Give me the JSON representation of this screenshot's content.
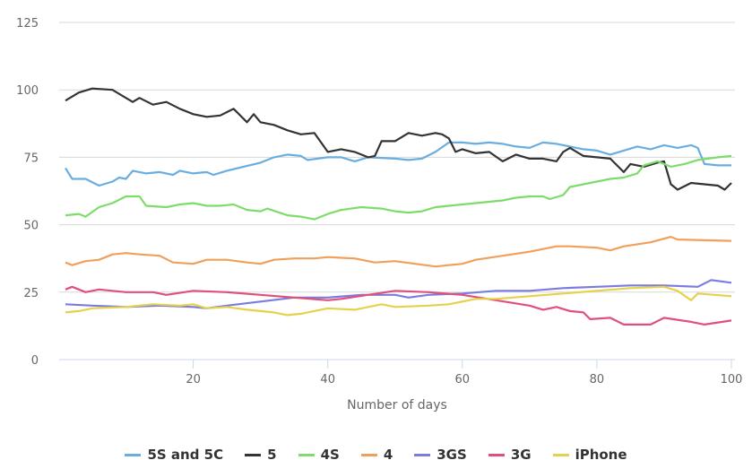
{
  "chart_data": {
    "type": "line",
    "title": "",
    "xlabel": "Number of days",
    "ylabel": "",
    "xlim": [
      1,
      100
    ],
    "ylim": [
      0,
      125
    ],
    "xticks": [
      20,
      40,
      60,
      80,
      100
    ],
    "yticks": [
      0,
      25,
      50,
      75,
      100,
      125
    ],
    "grid": true,
    "legend_position": "bottom-center",
    "series": [
      {
        "name": "5S and 5C",
        "color": "#6aaee0",
        "points": [
          [
            1,
            71
          ],
          [
            2,
            67
          ],
          [
            4,
            67
          ],
          [
            6,
            64.5
          ],
          [
            8,
            66
          ],
          [
            9,
            67.5
          ],
          [
            10,
            67
          ],
          [
            11,
            70
          ],
          [
            13,
            69
          ],
          [
            15,
            69.5
          ],
          [
            17,
            68.5
          ],
          [
            18,
            70
          ],
          [
            20,
            69
          ],
          [
            22,
            69.5
          ],
          [
            23,
            68.5
          ],
          [
            25,
            70
          ],
          [
            30,
            73
          ],
          [
            32,
            75
          ],
          [
            34,
            76
          ],
          [
            36,
            75.5
          ],
          [
            37,
            74
          ],
          [
            40,
            75
          ],
          [
            42,
            75
          ],
          [
            44,
            73.5
          ],
          [
            46,
            75
          ],
          [
            50,
            74.5
          ],
          [
            52,
            74
          ],
          [
            54,
            74.5
          ],
          [
            56,
            77
          ],
          [
            58,
            80.5
          ],
          [
            60,
            80.5
          ],
          [
            62,
            80
          ],
          [
            64,
            80.5
          ],
          [
            66,
            80
          ],
          [
            68,
            79
          ],
          [
            70,
            78.5
          ],
          [
            72,
            80.5
          ],
          [
            74,
            80
          ],
          [
            76,
            79
          ],
          [
            78,
            78
          ],
          [
            80,
            77.5
          ],
          [
            82,
            76
          ],
          [
            84,
            77.5
          ],
          [
            86,
            79
          ],
          [
            88,
            78
          ],
          [
            90,
            79.5
          ],
          [
            92,
            78.5
          ],
          [
            94,
            79.5
          ],
          [
            95,
            78.5
          ],
          [
            96,
            72.5
          ],
          [
            98,
            72
          ],
          [
            100,
            72
          ]
        ]
      },
      {
        "name": "5",
        "color": "#333333",
        "points": [
          [
            1,
            96
          ],
          [
            3,
            99
          ],
          [
            5,
            100.5
          ],
          [
            8,
            100
          ],
          [
            10,
            97
          ],
          [
            11,
            95.5
          ],
          [
            12,
            97
          ],
          [
            14,
            94.5
          ],
          [
            16,
            95.5
          ],
          [
            18,
            93
          ],
          [
            20,
            91
          ],
          [
            22,
            90
          ],
          [
            24,
            90.5
          ],
          [
            26,
            93
          ],
          [
            28,
            88
          ],
          [
            29,
            91
          ],
          [
            30,
            88
          ],
          [
            32,
            87
          ],
          [
            34,
            85
          ],
          [
            36,
            83.5
          ],
          [
            38,
            84
          ],
          [
            40,
            77
          ],
          [
            42,
            78
          ],
          [
            44,
            77
          ],
          [
            46,
            75
          ],
          [
            47,
            75.5
          ],
          [
            48,
            81
          ],
          [
            50,
            81
          ],
          [
            52,
            84
          ],
          [
            54,
            83
          ],
          [
            56,
            84
          ],
          [
            57,
            83.5
          ],
          [
            58,
            82
          ],
          [
            59,
            77
          ],
          [
            60,
            78
          ],
          [
            62,
            76.5
          ],
          [
            64,
            77
          ],
          [
            66,
            73.5
          ],
          [
            68,
            76
          ],
          [
            70,
            74.5
          ],
          [
            72,
            74.5
          ],
          [
            74,
            73.5
          ],
          [
            75,
            77
          ],
          [
            76,
            78.5
          ],
          [
            78,
            75.5
          ],
          [
            80,
            75
          ],
          [
            82,
            74.5
          ],
          [
            84,
            69.5
          ],
          [
            85,
            72.5
          ],
          [
            87,
            71.5
          ],
          [
            89,
            73
          ],
          [
            90,
            73.5
          ],
          [
            91,
            65
          ],
          [
            92,
            63
          ],
          [
            94,
            65.5
          ],
          [
            96,
            65
          ],
          [
            98,
            64.5
          ],
          [
            99,
            63
          ],
          [
            100,
            65.5
          ]
        ]
      },
      {
        "name": "4S",
        "color": "#7ddc6a",
        "points": [
          [
            1,
            53.5
          ],
          [
            3,
            54
          ],
          [
            4,
            53
          ],
          [
            6,
            56.5
          ],
          [
            8,
            58
          ],
          [
            10,
            60.5
          ],
          [
            12,
            60.5
          ],
          [
            13,
            57
          ],
          [
            16,
            56.5
          ],
          [
            18,
            57.5
          ],
          [
            20,
            58
          ],
          [
            22,
            57
          ],
          [
            24,
            57
          ],
          [
            26,
            57.5
          ],
          [
            28,
            55.5
          ],
          [
            30,
            55
          ],
          [
            31,
            56
          ],
          [
            34,
            53.5
          ],
          [
            36,
            53
          ],
          [
            38,
            52
          ],
          [
            40,
            54
          ],
          [
            42,
            55.5
          ],
          [
            45,
            56.5
          ],
          [
            48,
            56
          ],
          [
            50,
            55
          ],
          [
            52,
            54.5
          ],
          [
            54,
            55
          ],
          [
            56,
            56.5
          ],
          [
            58,
            57
          ],
          [
            60,
            57.5
          ],
          [
            62,
            58
          ],
          [
            64,
            58.5
          ],
          [
            66,
            59
          ],
          [
            68,
            60
          ],
          [
            70,
            60.5
          ],
          [
            72,
            60.5
          ],
          [
            73,
            59.5
          ],
          [
            75,
            61
          ],
          [
            76,
            64
          ],
          [
            78,
            65
          ],
          [
            80,
            66
          ],
          [
            82,
            67
          ],
          [
            84,
            67.5
          ],
          [
            86,
            69
          ],
          [
            87,
            72
          ],
          [
            89,
            73.5
          ],
          [
            91,
            71.5
          ],
          [
            93,
            72.5
          ],
          [
            95,
            74
          ],
          [
            98,
            75
          ],
          [
            100,
            75.5
          ]
        ]
      },
      {
        "name": "4",
        "color": "#f0a05a",
        "points": [
          [
            1,
            36
          ],
          [
            2,
            35
          ],
          [
            4,
            36.5
          ],
          [
            6,
            37
          ],
          [
            8,
            39
          ],
          [
            10,
            39.5
          ],
          [
            12,
            39
          ],
          [
            15,
            38.5
          ],
          [
            17,
            36
          ],
          [
            20,
            35.5
          ],
          [
            22,
            37
          ],
          [
            25,
            37
          ],
          [
            28,
            36
          ],
          [
            30,
            35.5
          ],
          [
            32,
            37
          ],
          [
            35,
            37.5
          ],
          [
            38,
            37.5
          ],
          [
            40,
            38
          ],
          [
            44,
            37.5
          ],
          [
            47,
            36
          ],
          [
            50,
            36.5
          ],
          [
            53,
            35.5
          ],
          [
            56,
            34.5
          ],
          [
            58,
            35
          ],
          [
            60,
            35.5
          ],
          [
            62,
            37
          ],
          [
            66,
            38.5
          ],
          [
            70,
            40
          ],
          [
            74,
            42
          ],
          [
            76,
            42
          ],
          [
            80,
            41.5
          ],
          [
            82,
            40.5
          ],
          [
            84,
            42
          ],
          [
            88,
            43.5
          ],
          [
            91,
            45.5
          ],
          [
            92,
            44.5
          ],
          [
            100,
            44
          ]
        ]
      },
      {
        "name": "3GS",
        "color": "#7b7be0",
        "points": [
          [
            1,
            20.5
          ],
          [
            5,
            20
          ],
          [
            10,
            19.5
          ],
          [
            15,
            20
          ],
          [
            20,
            19.5
          ],
          [
            22,
            19
          ],
          [
            25,
            20
          ],
          [
            30,
            21.5
          ],
          [
            35,
            23
          ],
          [
            40,
            23
          ],
          [
            45,
            24
          ],
          [
            50,
            24
          ],
          [
            52,
            23
          ],
          [
            55,
            24
          ],
          [
            60,
            24.5
          ],
          [
            65,
            25.5
          ],
          [
            70,
            25.5
          ],
          [
            75,
            26.5
          ],
          [
            80,
            27
          ],
          [
            85,
            27.5
          ],
          [
            90,
            27.5
          ],
          [
            95,
            27
          ],
          [
            97,
            29.5
          ],
          [
            100,
            28.5
          ]
        ]
      },
      {
        "name": "3G",
        "color": "#e0507a",
        "points": [
          [
            1,
            26
          ],
          [
            2,
            27
          ],
          [
            4,
            25
          ],
          [
            6,
            26
          ],
          [
            10,
            25
          ],
          [
            14,
            25
          ],
          [
            16,
            24
          ],
          [
            20,
            25.5
          ],
          [
            25,
            25
          ],
          [
            30,
            24
          ],
          [
            35,
            23
          ],
          [
            40,
            22
          ],
          [
            42,
            22.5
          ],
          [
            46,
            24
          ],
          [
            50,
            25.5
          ],
          [
            55,
            25
          ],
          [
            60,
            24
          ],
          [
            65,
            22
          ],
          [
            70,
            20
          ],
          [
            72,
            18.5
          ],
          [
            74,
            19.5
          ],
          [
            76,
            18
          ],
          [
            78,
            17.5
          ],
          [
            79,
            15
          ],
          [
            82,
            15.5
          ],
          [
            84,
            13
          ],
          [
            88,
            13
          ],
          [
            90,
            15.5
          ],
          [
            94,
            14
          ],
          [
            96,
            13
          ],
          [
            100,
            14.5
          ]
        ]
      },
      {
        "name": "iPhone",
        "color": "#e6d24a",
        "points": [
          [
            1,
            17.5
          ],
          [
            3,
            18
          ],
          [
            5,
            19
          ],
          [
            10,
            19.5
          ],
          [
            14,
            20.5
          ],
          [
            18,
            20
          ],
          [
            20,
            20.5
          ],
          [
            22,
            19
          ],
          [
            25,
            19.5
          ],
          [
            28,
            18.5
          ],
          [
            32,
            17.5
          ],
          [
            34,
            16.5
          ],
          [
            36,
            17
          ],
          [
            40,
            19
          ],
          [
            44,
            18.5
          ],
          [
            48,
            20.5
          ],
          [
            50,
            19.5
          ],
          [
            55,
            20
          ],
          [
            58,
            20.5
          ],
          [
            62,
            22.5
          ],
          [
            65,
            22.5
          ],
          [
            70,
            23.5
          ],
          [
            75,
            24.5
          ],
          [
            80,
            25.5
          ],
          [
            85,
            26.5
          ],
          [
            90,
            27
          ],
          [
            92,
            25.5
          ],
          [
            94,
            22
          ],
          [
            95,
            24.5
          ],
          [
            100,
            23.5
          ]
        ]
      }
    ]
  }
}
